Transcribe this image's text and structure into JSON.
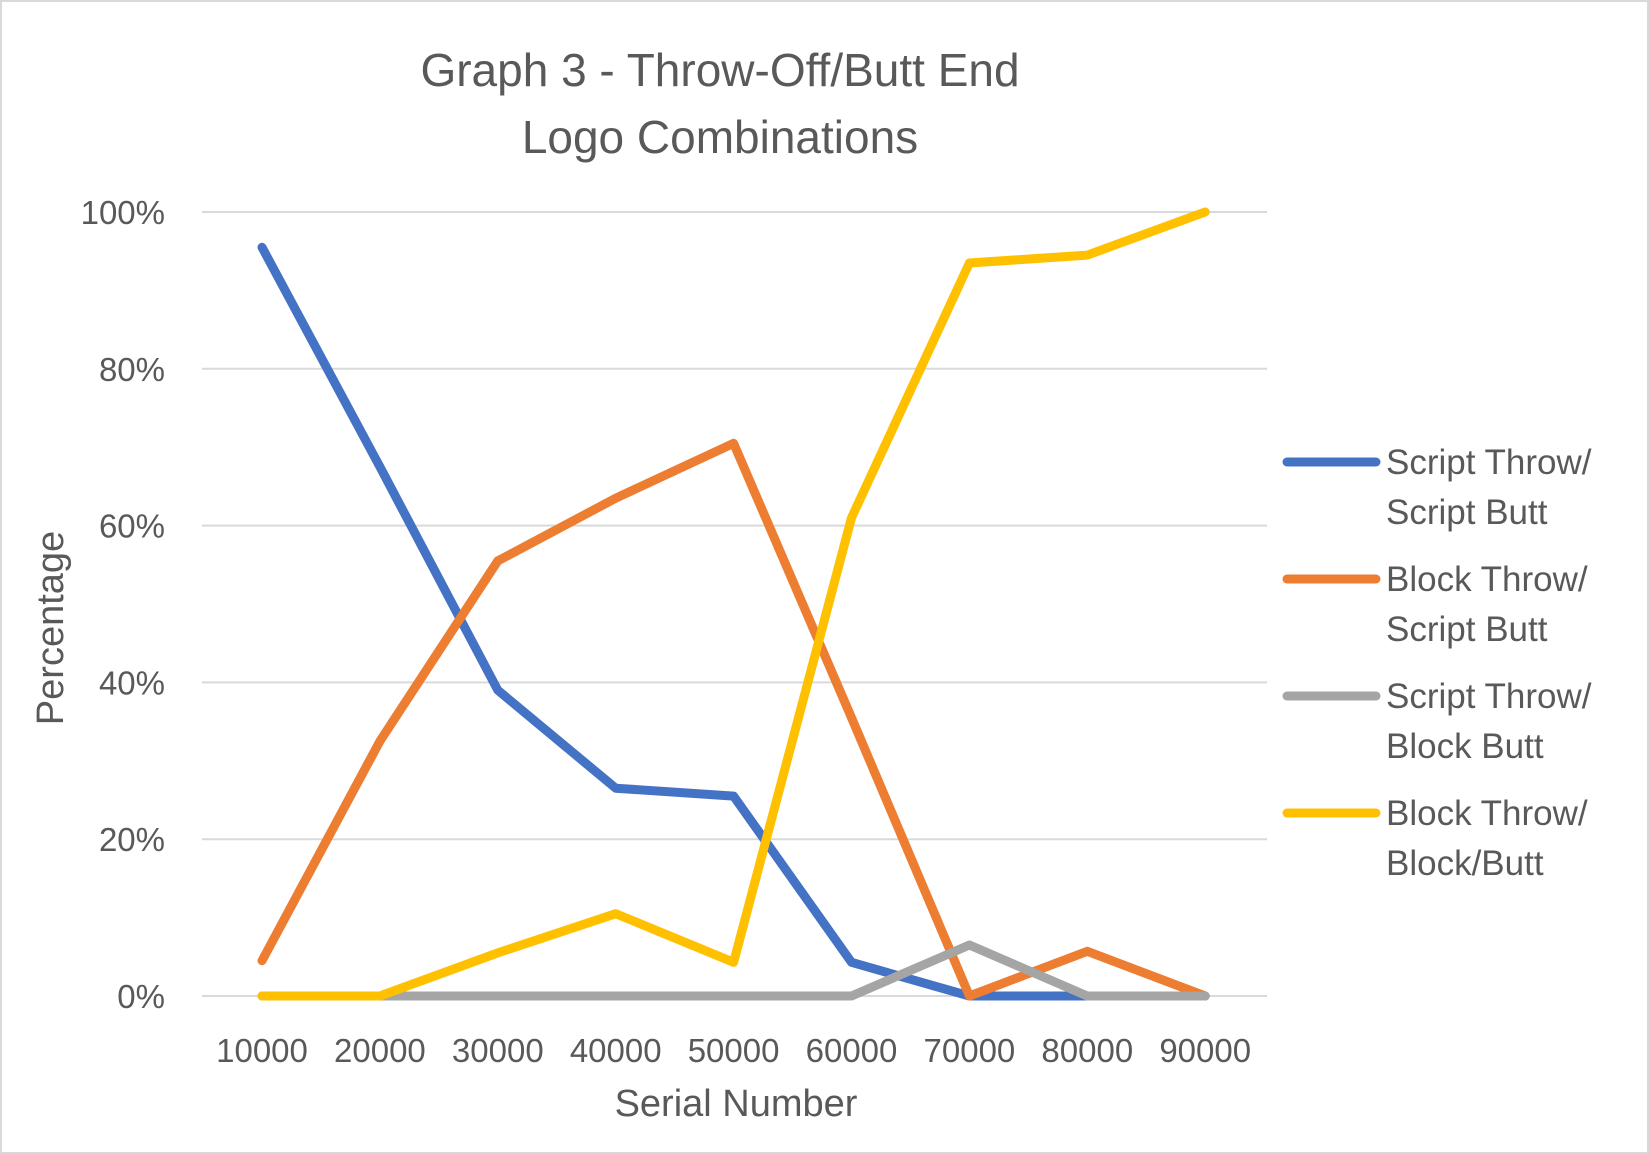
{
  "chart_data": {
    "type": "line",
    "title_lines": [
      "Graph 3 - Throw-Off/Butt End",
      "Logo Combinations"
    ],
    "xlabel": "Serial Number",
    "ylabel": "Percentage",
    "categories": [
      "10000",
      "20000",
      "30000",
      "40000",
      "50000",
      "60000",
      "70000",
      "80000",
      "90000"
    ],
    "ylim": [
      0,
      100
    ],
    "yticks": [
      0,
      20,
      40,
      60,
      80,
      100
    ],
    "ytick_labels": [
      "0%",
      "20%",
      "40%",
      "60%",
      "80%",
      "100%"
    ],
    "grid": true,
    "legend_position": "right",
    "series": [
      {
        "name_lines": [
          "Script Throw/",
          "Script Butt"
        ],
        "color": "#4472c4",
        "values": [
          95.5,
          67.5,
          39,
          26.5,
          25.5,
          4.3,
          0,
          0,
          0
        ]
      },
      {
        "name_lines": [
          "Block Throw/",
          "Script Butt"
        ],
        "color": "#ed7d31",
        "values": [
          4.5,
          32.5,
          55.5,
          63.5,
          70.5,
          35.5,
          0,
          5.7,
          0
        ]
      },
      {
        "name_lines": [
          "Script Throw/",
          "Block Butt"
        ],
        "color": "#a5a5a5",
        "values": [
          0,
          0,
          0,
          0,
          0,
          0,
          6.5,
          0,
          0
        ]
      },
      {
        "name_lines": [
          "Block Throw/",
          "Block/Butt"
        ],
        "color": "#ffc000",
        "values": [
          0,
          0,
          5.5,
          10.5,
          4.3,
          61,
          93.5,
          94.5,
          100
        ]
      }
    ]
  }
}
